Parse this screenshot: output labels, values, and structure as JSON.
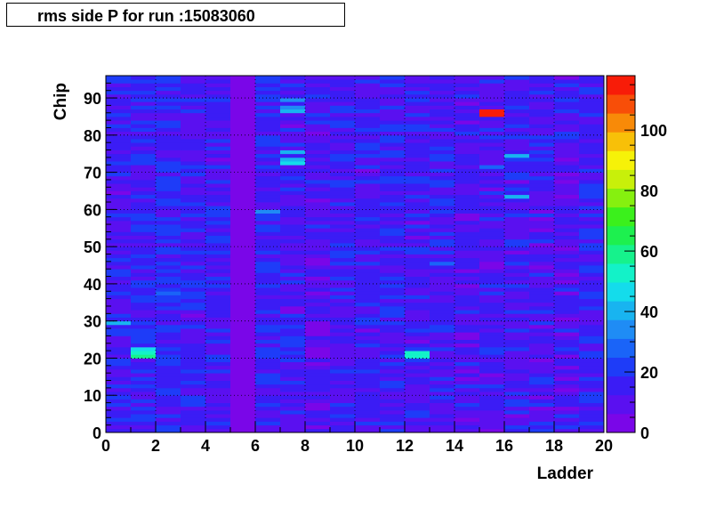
{
  "chart_data": {
    "type": "heatmap",
    "title": "rms side P for run :15083060",
    "xlabel": "Ladder",
    "ylabel": "Chip",
    "xlim": [
      0,
      20
    ],
    "ylim": [
      0,
      96
    ],
    "x_ticks": [
      0,
      2,
      4,
      6,
      8,
      10,
      12,
      14,
      16,
      18,
      20
    ],
    "y_ticks": [
      0,
      10,
      20,
      30,
      40,
      50,
      60,
      70,
      80,
      90
    ],
    "colorbar": {
      "range": [
        0,
        118
      ],
      "ticks": [
        0,
        20,
        40,
        60,
        80,
        100
      ],
      "colors": [
        "#7a06e8",
        "#5a10f0",
        "#3b1cf5",
        "#1e3cf8",
        "#1a64f8",
        "#1f8cf5",
        "#18b4f0",
        "#14dceb",
        "#13f2c8",
        "#16f28c",
        "#1df04f",
        "#3bf01c",
        "#86f00f",
        "#c8f00a",
        "#f6f208",
        "#f8c008",
        "#f88a08",
        "#f84e08",
        "#f81c08"
      ]
    },
    "base_values": [
      14,
      16,
      17,
      14,
      14,
      4,
      15,
      14,
      12,
      14,
      14,
      15,
      14,
      14,
      12,
      13,
      14,
      13,
      12,
      15
    ],
    "highlights": [
      {
        "ladder": 15,
        "chip": 85,
        "value": 118
      },
      {
        "ladder": 15,
        "chip": 86,
        "value": 118
      },
      {
        "ladder": 1,
        "chip": 20,
        "value": 60
      },
      {
        "ladder": 1,
        "chip": 21,
        "value": 52
      },
      {
        "ladder": 1,
        "chip": 22,
        "value": 45
      },
      {
        "ladder": 12,
        "chip": 20,
        "value": 55
      },
      {
        "ladder": 12,
        "chip": 21,
        "value": 50
      },
      {
        "ladder": 7,
        "chip": 86,
        "value": 40
      },
      {
        "ladder": 7,
        "chip": 87,
        "value": 36
      },
      {
        "ladder": 7,
        "chip": 89,
        "value": 34
      },
      {
        "ladder": 7,
        "chip": 72,
        "value": 48
      },
      {
        "ladder": 7,
        "chip": 73,
        "value": 42
      },
      {
        "ladder": 7,
        "chip": 75,
        "value": 40
      },
      {
        "ladder": 0,
        "chip": 29,
        "value": 42
      },
      {
        "ladder": 16,
        "chip": 74,
        "value": 38
      },
      {
        "ladder": 16,
        "chip": 63,
        "value": 40
      },
      {
        "ladder": 15,
        "chip": 71,
        "value": 30
      },
      {
        "ladder": 6,
        "chip": 59,
        "value": 32
      },
      {
        "ladder": 13,
        "chip": 45,
        "value": 30
      }
    ]
  }
}
